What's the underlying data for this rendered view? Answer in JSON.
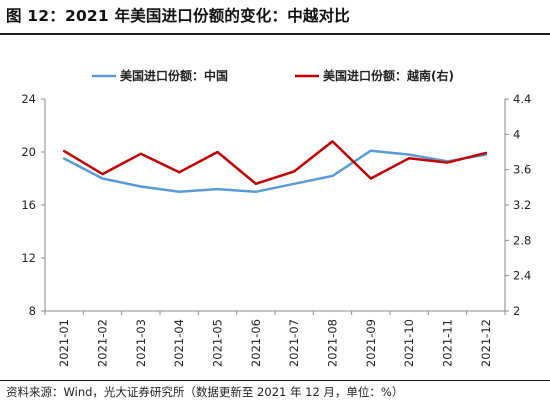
{
  "title": "图 12：2021 年美国进口份额的变化：中越对比",
  "source": "资料来源：Wind，光大证券研究所（数据更新至 2021 年 12 月，单位：%）",
  "chart_data": {
    "type": "line",
    "categories": [
      "2021-01",
      "2021-02",
      "2021-03",
      "2021-04",
      "2021-05",
      "2021-06",
      "2021-07",
      "2021-08",
      "2021-09",
      "2021-10",
      "2021-11",
      "2021-12"
    ],
    "series": [
      {
        "name": "美国进口份额：中国",
        "axis": "left",
        "color": "#5B9BD5",
        "values": [
          19.5,
          18.0,
          17.4,
          17.0,
          17.2,
          17.0,
          17.6,
          18.2,
          20.1,
          19.8,
          19.3,
          19.8
        ]
      },
      {
        "name": "美国进口份额：越南(右)",
        "axis": "right",
        "color": "#C00000",
        "values": [
          3.81,
          3.55,
          3.78,
          3.57,
          3.8,
          3.44,
          3.58,
          3.92,
          3.5,
          3.73,
          3.68,
          3.79
        ]
      }
    ],
    "ylim_left": [
      8,
      24
    ],
    "yticks_left": [
      "8",
      "12",
      "16",
      "20",
      "24"
    ],
    "ylim_right": [
      2,
      4.4
    ],
    "yticks_right": [
      "2",
      "2.4",
      "2.8",
      "3.2",
      "3.6",
      "4",
      "4.4"
    ],
    "grid": false,
    "legend_position": "top"
  }
}
